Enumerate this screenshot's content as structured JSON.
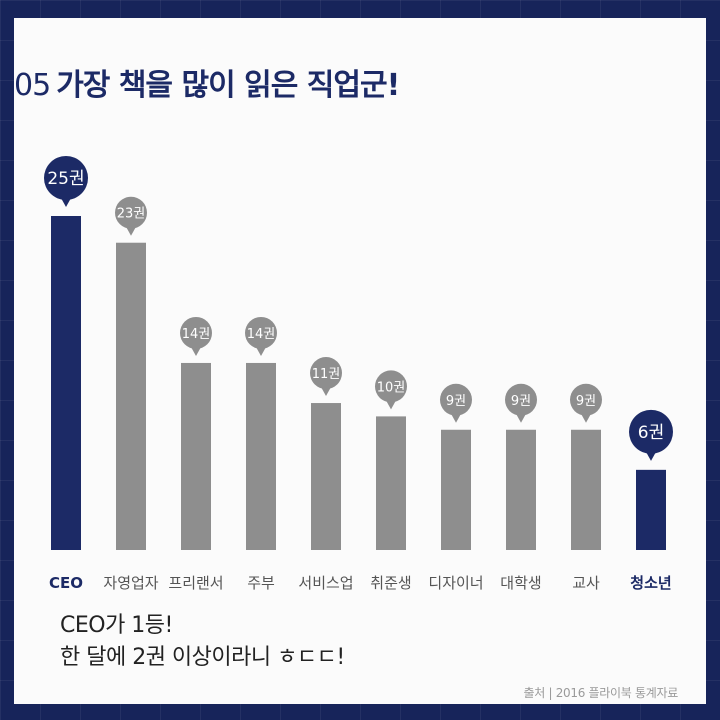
{
  "title": {
    "number": "05",
    "text": "가장 책을 많이 읽은 직업군!"
  },
  "note": {
    "line1": "CEO가 1등!",
    "line2": "한 달에 2권 이상이라니 ㅎㄷㄷ!"
  },
  "source": "출처 | 2016 플라이북 통계자료",
  "colors": {
    "highlight": "#1c2a66",
    "normal": "#8e8e8e",
    "background": "#17245a",
    "card": "#fbfbfb"
  },
  "chart_data": {
    "type": "bar",
    "title": "",
    "xlabel": "",
    "ylabel": "",
    "categories": [
      "CEO",
      "자영업자",
      "프리랜서",
      "주부",
      "서비스업",
      "취준생",
      "디자이너",
      "대학생",
      "교사",
      "청소년"
    ],
    "values": [
      25,
      23,
      14,
      14,
      11,
      10,
      9,
      9,
      9,
      6
    ],
    "value_labels": [
      "25권",
      "23권",
      "14권",
      "14권",
      "11권",
      "10권",
      "9권",
      "9권",
      "9권",
      "6권"
    ],
    "highlighted": [
      "CEO",
      "청소년"
    ],
    "ylim": [
      0,
      25
    ],
    "grid": false,
    "legend": "none"
  }
}
